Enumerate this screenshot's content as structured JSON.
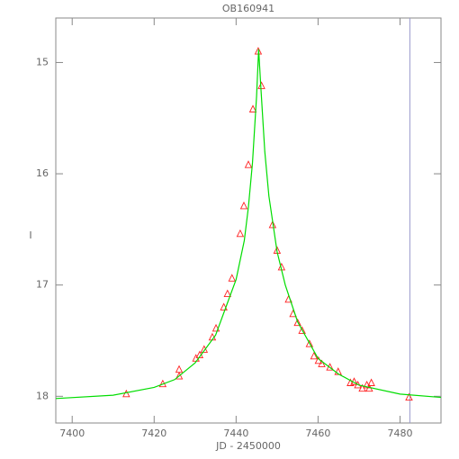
{
  "chart_data": {
    "type": "scatter",
    "title": "OB160941",
    "xlabel": "JD - 2450000",
    "ylabel": "I",
    "xlim": [
      7396,
      7490
    ],
    "xticks": [
      7400,
      7420,
      7440,
      7460,
      7480
    ],
    "ylim": [
      18.24,
      14.6
    ],
    "yticks": [
      15,
      16,
      17,
      18
    ],
    "vline": 7482.4,
    "vline_color": "#9999cc",
    "series": [
      {
        "color": "#ff2020",
        "x": [
          7413.2,
          7422.1,
          7426.1,
          7426.1,
          7430.2,
          7431.1,
          7432.2,
          7434.2,
          7435.1,
          7437.0,
          7437.9,
          7439.0,
          7441.0,
          7441.9,
          7443.0,
          7444.1,
          7445.4,
          7446.2,
          7448.9,
          7450.0,
          7451.1,
          7452.8,
          7453.9,
          7455.0,
          7456.1,
          7457.9,
          7459.0,
          7460.1,
          7460.9,
          7462.9,
          7464.9,
          7467.9,
          7468.8,
          7469.7,
          7470.8,
          7471.9,
          7472.5,
          7473.0,
          7482.2
        ],
        "values": [
          17.98,
          17.89,
          17.76,
          17.82,
          17.66,
          17.63,
          17.58,
          17.47,
          17.39,
          17.2,
          17.08,
          16.94,
          16.54,
          16.29,
          15.92,
          15.42,
          14.9,
          15.21,
          16.46,
          16.69,
          16.84,
          17.13,
          17.26,
          17.34,
          17.41,
          17.53,
          17.64,
          17.68,
          17.71,
          17.74,
          17.78,
          17.88,
          17.87,
          17.9,
          17.93,
          17.9,
          17.93,
          17.88,
          18.01
        ]
      },
      {
        "type": "line",
        "color": "#00dd00",
        "x": [
          7396,
          7410,
          7420,
          7425,
          7430,
          7435,
          7438,
          7440,
          7442,
          7443,
          7444,
          7445,
          7445.5,
          7446,
          7447,
          7448,
          7450,
          7452,
          7455,
          7460,
          7465,
          7470,
          7480,
          7490
        ],
        "values": [
          18.02,
          17.99,
          17.92,
          17.85,
          17.7,
          17.45,
          17.15,
          16.95,
          16.6,
          16.3,
          15.9,
          15.3,
          14.88,
          15.2,
          15.8,
          16.2,
          16.7,
          17.0,
          17.33,
          17.66,
          17.8,
          17.9,
          17.98,
          18.01
        ]
      }
    ]
  }
}
